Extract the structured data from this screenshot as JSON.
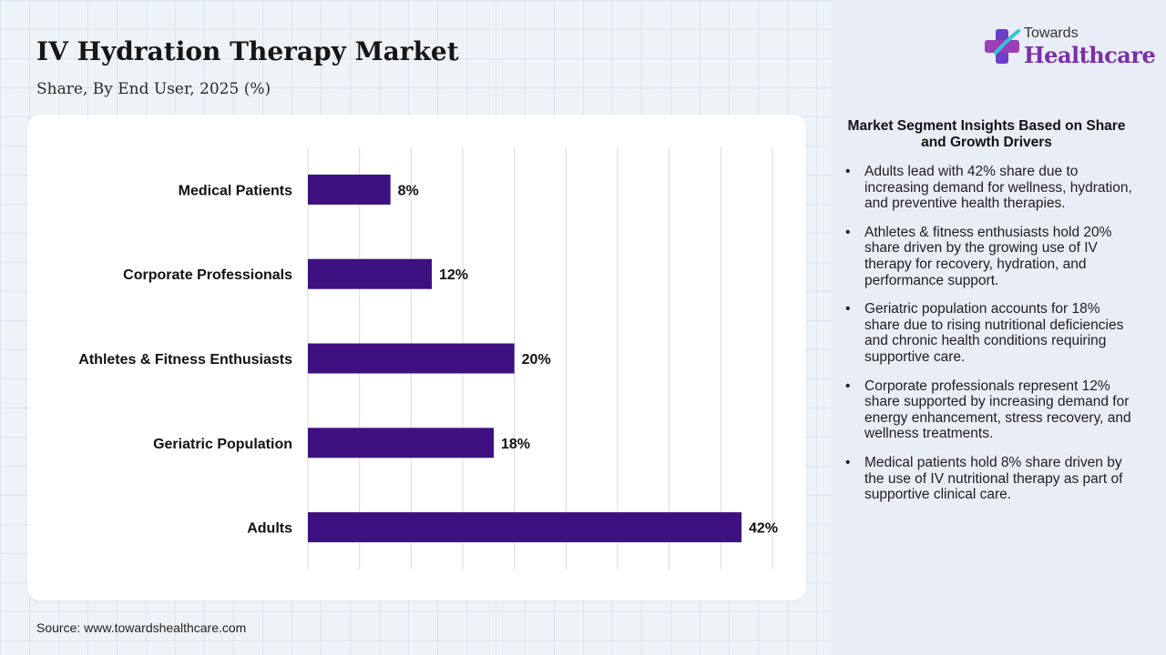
{
  "header": {
    "title": "IV Hydration Therapy Market",
    "subtitle": "Share, By End User, 2025 (%)"
  },
  "brand": {
    "top": "Towards",
    "main": "Healthcare",
    "color": "#7a2fa8"
  },
  "source": "Source: www.towardshealthcare.com",
  "insights": {
    "title": "Market Segment Insights Based on Share and Growth Drivers",
    "items": [
      "Adults lead with 42% share due to increasing demand for wellness, hydration, and preventive health therapies.",
      "Athletes & fitness enthusiasts hold 20% share driven by the growing use of IV therapy for recovery, hydration, and performance support.",
      "Geriatric population accounts for 18% share due to rising nutritional deficiencies and chronic health conditions requiring supportive care.",
      "Corporate professionals represent 12% share supported by increasing demand for energy enhancement, stress recovery, and wellness treatments.",
      "Medical patients hold 8% share driven by the use of IV nutritional therapy as part of supportive clinical care."
    ]
  },
  "chart_data": {
    "type": "bar",
    "orientation": "horizontal",
    "categories": [
      "Medical Patients",
      "Corporate Professionals",
      "Athletes & Fitness Enthusiasts",
      "Geriatric Population",
      "Adults"
    ],
    "values": [
      8,
      12,
      20,
      18,
      42
    ],
    "value_labels": [
      "8%",
      "12%",
      "20%",
      "18%",
      "42%"
    ],
    "xlim": [
      0,
      45
    ],
    "grid": true,
    "bar_color": "#3d1180"
  }
}
